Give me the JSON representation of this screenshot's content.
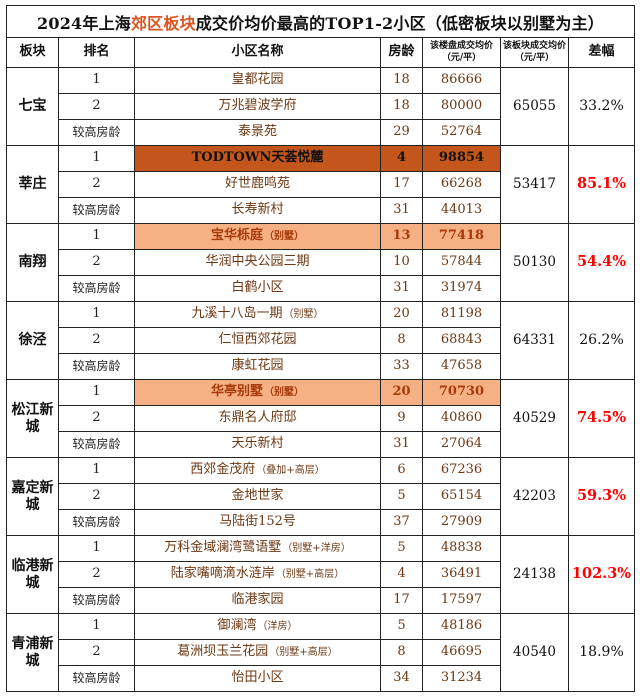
{
  "title_parts": {
    "prefix": "2024年上海",
    "accent": "郊区板块",
    "mid": "成交价均价最高的TOP1-2小区",
    "paren": "（低密板块以别墅为主）"
  },
  "colors": {
    "title_accent": "#d9541e",
    "diff_red": "#ff0000",
    "highlight_dark_bg": "#c4561c",
    "highlight_light_bg": "#f5b183",
    "highlight_light_text": "#a83a0c",
    "body_text": "#6d3712"
  },
  "chart_data": {
    "type": "table",
    "title": "2024年上海郊区板块成交价均价最高的TOP1-2小区（低密板块以别墅为主）",
    "columns": [
      {
        "label": "板块"
      },
      {
        "label": "排名"
      },
      {
        "label": "小区名称"
      },
      {
        "label": "房龄"
      },
      {
        "label": "该楼盘成交均价",
        "sub": "（元/平）"
      },
      {
        "label": "该板块成交均价",
        "sub": "（元/平）"
      },
      {
        "label": "差幅"
      }
    ],
    "groups": [
      {
        "district": "七宝",
        "block_avg": "65055",
        "diff": "33.2%",
        "diff_red": false,
        "rows": [
          {
            "rank": "1",
            "name": "皇都花园",
            "age": "18",
            "price": "86666"
          },
          {
            "rank": "2",
            "name": "万兆碧波学府",
            "age": "18",
            "price": "80000"
          },
          {
            "rank": "较高房龄",
            "name": "泰景苑",
            "age": "29",
            "price": "52764"
          }
        ]
      },
      {
        "district": "莘庄",
        "block_avg": "53417",
        "diff": "85.1%",
        "diff_red": true,
        "rows": [
          {
            "rank": "1",
            "name": "TODTOWN天荟悦麓",
            "age": "4",
            "price": "98854",
            "highlight": "dark"
          },
          {
            "rank": "2",
            "name": "好世鹿鸣苑",
            "age": "17",
            "price": "66268"
          },
          {
            "rank": "较高房龄",
            "name": "长寿新村",
            "age": "31",
            "price": "44013"
          }
        ]
      },
      {
        "district": "南翔",
        "block_avg": "50130",
        "diff": "54.4%",
        "diff_red": true,
        "rows": [
          {
            "rank": "1",
            "name": "宝华栎庭",
            "tag": "（别墅）",
            "age": "13",
            "price": "77418",
            "highlight": "light"
          },
          {
            "rank": "2",
            "name": "华润中央公园三期",
            "age": "10",
            "price": "57844"
          },
          {
            "rank": "较高房龄",
            "name": "白鹤小区",
            "age": "31",
            "price": "31974"
          }
        ]
      },
      {
        "district": "徐泾",
        "block_avg": "64331",
        "diff": "26.2%",
        "diff_red": false,
        "rows": [
          {
            "rank": "1",
            "name": "九溪十八岛一期",
            "tag": "（别墅）",
            "age": "20",
            "price": "81198"
          },
          {
            "rank": "2",
            "name": "仁恒西郊花园",
            "age": "8",
            "price": "68843"
          },
          {
            "rank": "较高房龄",
            "name": "康虹花园",
            "age": "33",
            "price": "47658"
          }
        ]
      },
      {
        "district": "松江新城",
        "block_avg": "40529",
        "diff": "74.5%",
        "diff_red": true,
        "rows": [
          {
            "rank": "1",
            "name": "华亭别墅",
            "tag": "（别墅）",
            "age": "20",
            "price": "70730",
            "highlight": "light"
          },
          {
            "rank": "2",
            "name": "东鼎名人府邸",
            "age": "9",
            "price": "40860"
          },
          {
            "rank": "较高房龄",
            "name": "天乐新村",
            "age": "31",
            "price": "27064"
          }
        ]
      },
      {
        "district": "嘉定新城",
        "block_avg": "42203",
        "diff": "59.3%",
        "diff_red": true,
        "rows": [
          {
            "rank": "1",
            "name": "西郊金茂府",
            "tag": "（叠加+高层）",
            "age": "6",
            "price": "67236"
          },
          {
            "rank": "2",
            "name": "金地世家",
            "age": "5",
            "price": "65154"
          },
          {
            "rank": "较高房龄",
            "name": "马陆街152号",
            "age": "37",
            "price": "27909"
          }
        ]
      },
      {
        "district": "临港新城",
        "block_avg": "24138",
        "diff": "102.3%",
        "diff_red": true,
        "rows": [
          {
            "rank": "1",
            "name": "万科金域澜湾鹭语墅",
            "tag": "（别墅+洋房）",
            "age": "5",
            "price": "48838"
          },
          {
            "rank": "2",
            "name": "陆家嘴嘀滴水涟岸",
            "tag": "（别墅+高层）",
            "age": "4",
            "price": "36491"
          },
          {
            "rank": "较高房龄",
            "name": "临港家园",
            "age": "17",
            "price": "17597"
          }
        ]
      },
      {
        "district": "青浦新城",
        "block_avg": "40540",
        "diff": "18.9%",
        "diff_red": false,
        "rows": [
          {
            "rank": "1",
            "name": "御澜湾",
            "tag": "（洋房）",
            "age": "5",
            "price": "48186"
          },
          {
            "rank": "2",
            "name": "葛洲坝玉兰花园",
            "tag": "（别墅+高层）",
            "age": "8",
            "price": "46695"
          },
          {
            "rank": "较高房龄",
            "name": "怡田小区",
            "age": "34",
            "price": "31234"
          }
        ]
      }
    ]
  }
}
